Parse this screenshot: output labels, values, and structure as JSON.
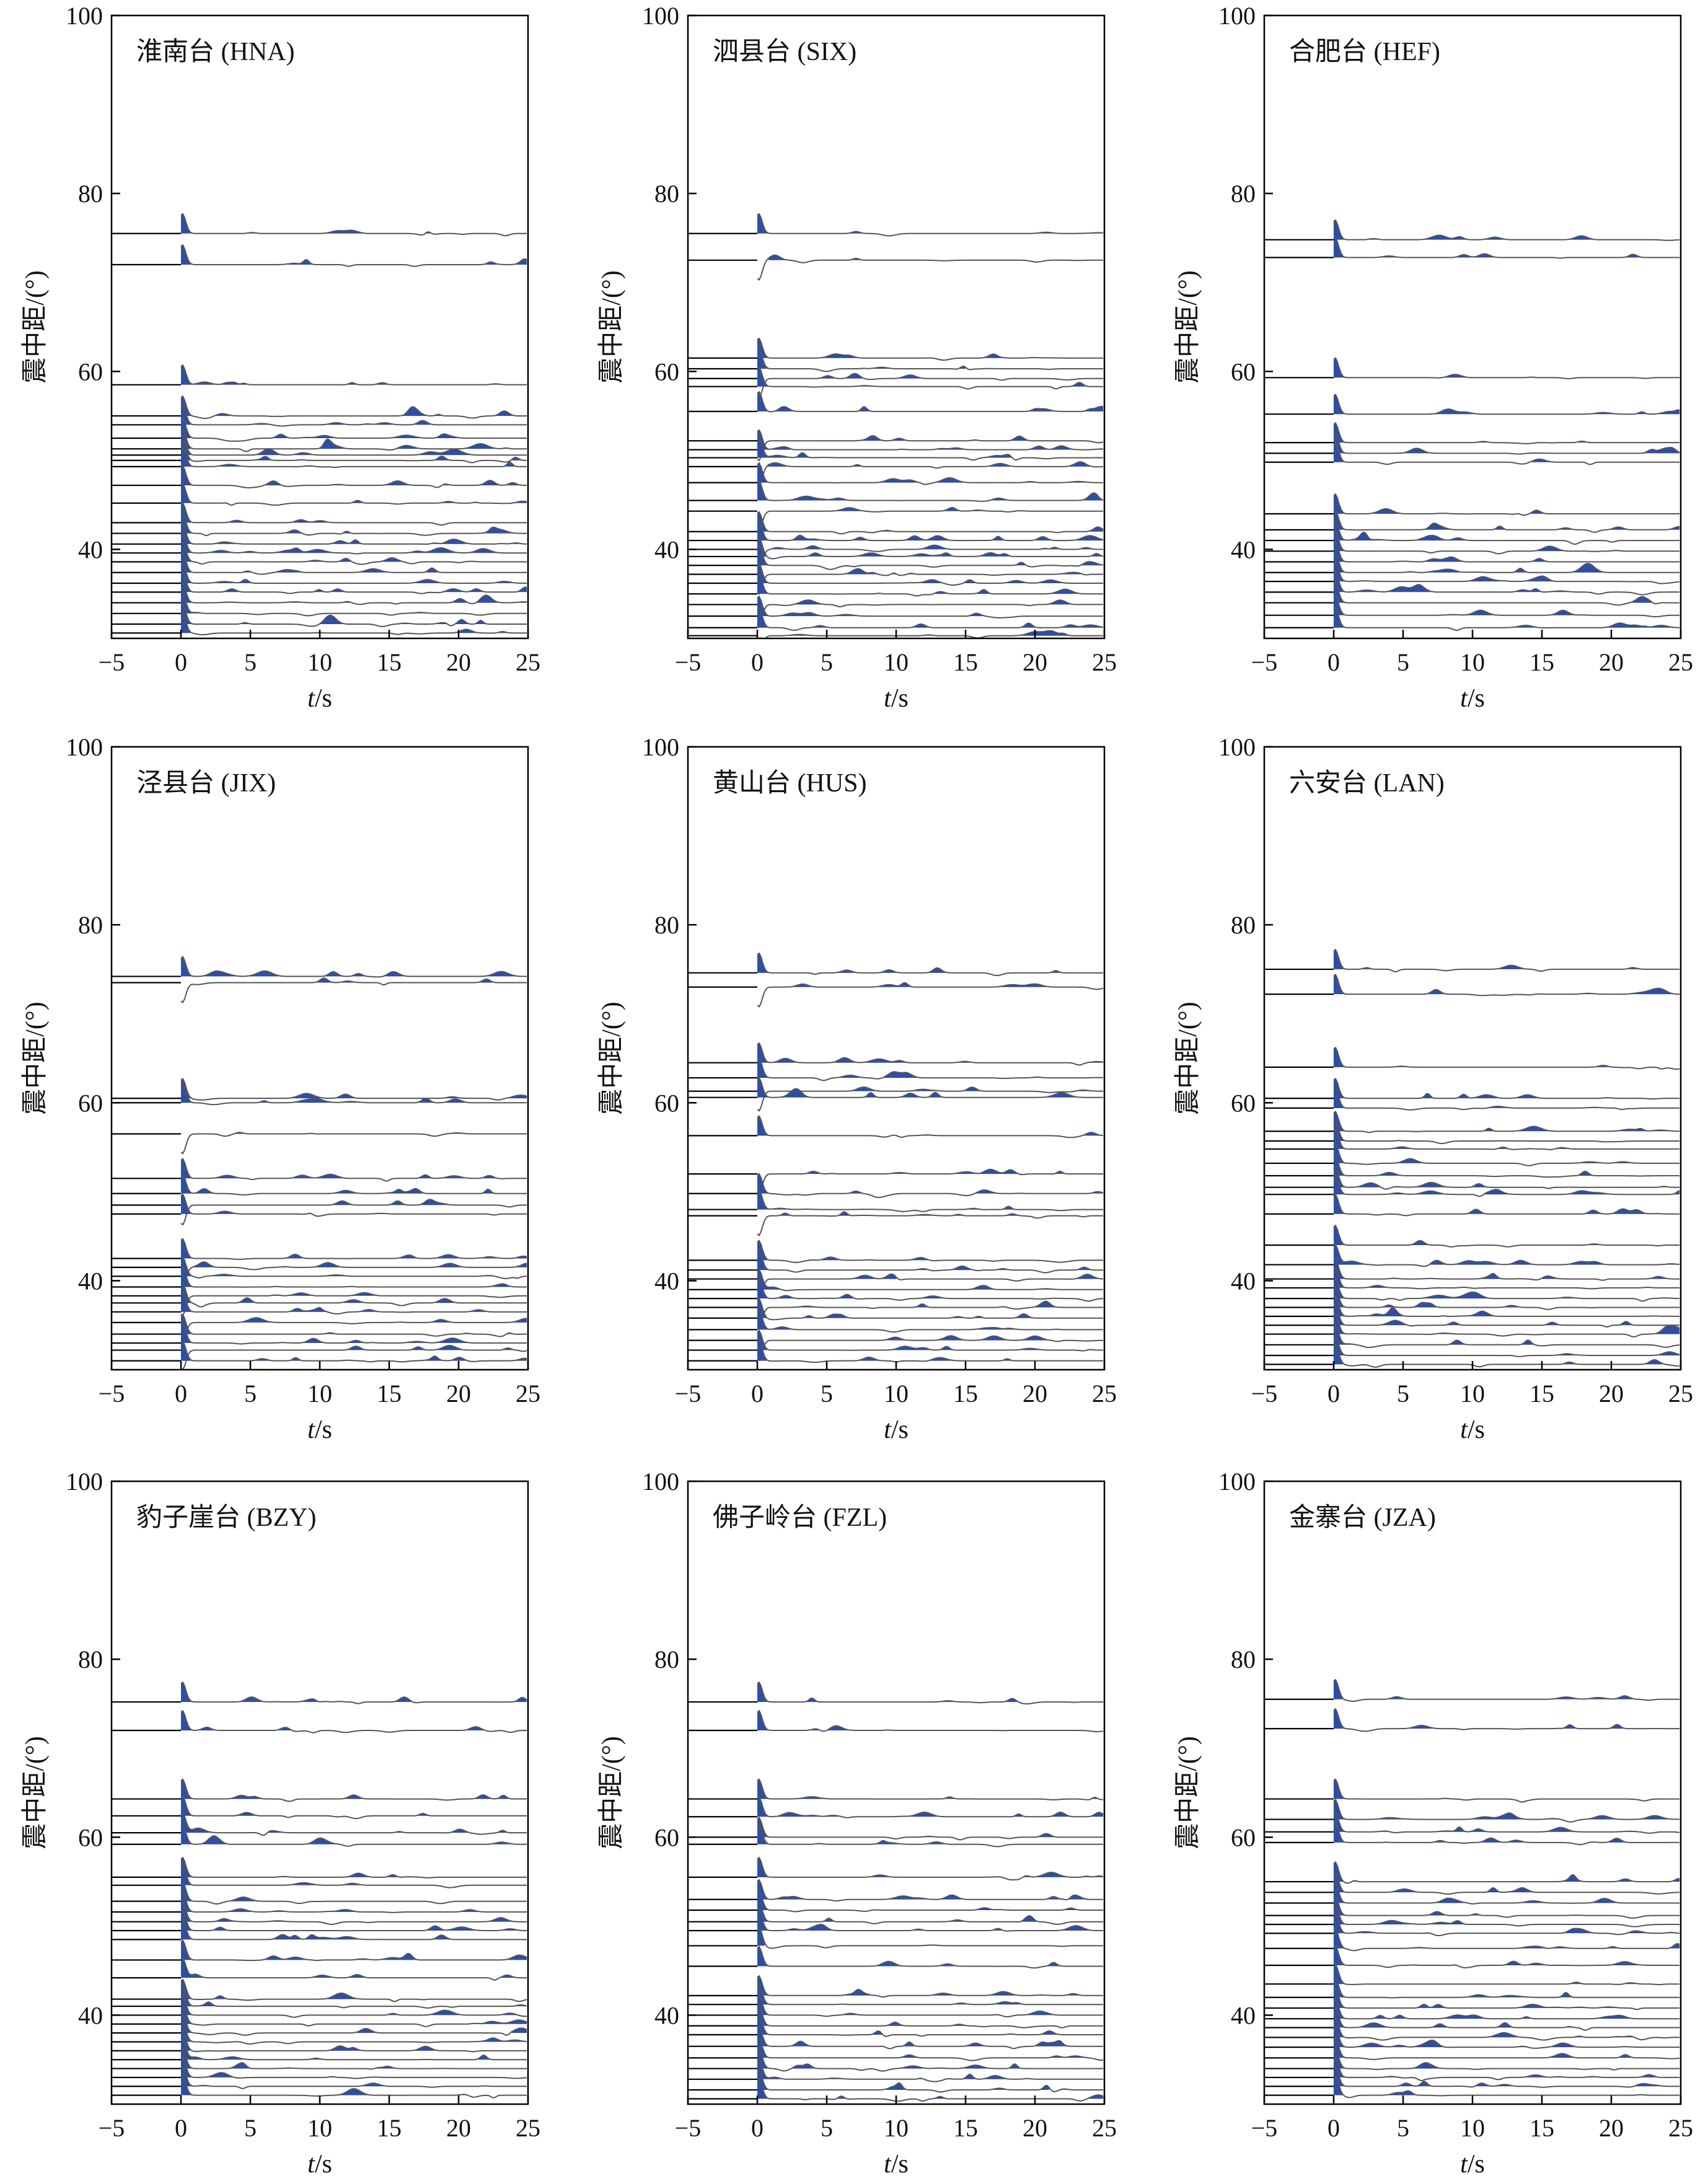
{
  "chart_data": [
    {
      "type": "line",
      "station": "淮南台 (HNA)",
      "title": "",
      "xlabel": "t/s",
      "ylabel": "震中距/(°)",
      "xlim": [
        -5,
        25
      ],
      "ylim": [
        30,
        100
      ],
      "xticks": [
        -5,
        0,
        5,
        10,
        15,
        20,
        25
      ],
      "yticks": [
        40,
        60,
        80,
        100
      ],
      "p_polarity": "positive",
      "traces_distance_deg": [
        75.5,
        72.0,
        58.5,
        55.0,
        54.0,
        52.5,
        51.3,
        50.6,
        50.0,
        49.3,
        47.2,
        45.2,
        43.0,
        41.8,
        40.6,
        39.6,
        38.6,
        37.4,
        36.2,
        35.2,
        34.0,
        32.8,
        31.6,
        30.6
      ],
      "legend": "none",
      "grid": false
    },
    {
      "type": "line",
      "station": "泗县台 (SIX)",
      "title": "",
      "xlabel": "t/s",
      "ylabel": "震中距/(°)",
      "xlim": [
        -5,
        25
      ],
      "ylim": [
        30,
        100
      ],
      "xticks": [
        -5,
        0,
        5,
        10,
        15,
        20,
        25
      ],
      "yticks": [
        40,
        60,
        80,
        100
      ],
      "p_polarity": "mixed",
      "traces_distance_deg": [
        75.5,
        72.5,
        61.5,
        60.3,
        59.2,
        58.3,
        55.5,
        52.2,
        51.2,
        50.3,
        49.3,
        47.5,
        45.5,
        44.3,
        42.0,
        41.0,
        40.0,
        39.2,
        38.2,
        37.2,
        36.2,
        35.0,
        33.8,
        32.5,
        31.2,
        30.3
      ],
      "legend": "none",
      "grid": false
    },
    {
      "type": "line",
      "station": "合肥台 (HEF)",
      "title": "",
      "xlabel": "t/s",
      "ylabel": "震中距/(°)",
      "xlim": [
        -5,
        25
      ],
      "ylim": [
        30,
        100
      ],
      "xticks": [
        -5,
        0,
        5,
        10,
        15,
        20,
        25
      ],
      "yticks": [
        40,
        60,
        80,
        100
      ],
      "p_polarity": "positive",
      "traces_distance_deg": [
        74.8,
        72.8,
        59.3,
        55.2,
        52.0,
        50.8,
        49.8,
        44.0,
        42.2,
        41.0,
        39.8,
        38.6,
        37.4,
        36.4,
        35.2,
        34.0,
        32.6,
        31.2
      ],
      "legend": "none",
      "grid": false
    },
    {
      "type": "line",
      "station": "泾县台 (JIX)",
      "title": "",
      "xlabel": "t/s",
      "ylabel": "震中距/(°)",
      "xlim": [
        -5,
        25
      ],
      "ylim": [
        30,
        100
      ],
      "xticks": [
        -5,
        0,
        5,
        10,
        15,
        20,
        25
      ],
      "yticks": [
        40,
        60,
        80,
        100
      ],
      "p_polarity": "mixed",
      "traces_distance_deg": [
        74.2,
        73.5,
        60.5,
        60.0,
        56.5,
        51.5,
        49.8,
        48.5,
        47.5,
        42.5,
        41.5,
        40.5,
        39.3,
        38.3,
        37.5,
        36.5,
        35.3,
        34.0,
        33.0,
        32.2,
        31.0
      ],
      "legend": "none",
      "grid": false
    },
    {
      "type": "line",
      "station": "黄山台 (HUS)",
      "title": "",
      "xlabel": "t/s",
      "ylabel": "震中距/(°)",
      "xlim": [
        -5,
        25
      ],
      "ylim": [
        30,
        100
      ],
      "xticks": [
        -5,
        0,
        5,
        10,
        15,
        20,
        25
      ],
      "yticks": [
        40,
        60,
        80,
        100
      ],
      "p_polarity": "mixed",
      "traces_distance_deg": [
        74.6,
        73.0,
        64.5,
        62.8,
        61.3,
        60.6,
        56.3,
        52.0,
        49.8,
        48.0,
        47.3,
        42.3,
        41.2,
        40.2,
        39.0,
        38.0,
        37.0,
        35.8,
        34.5,
        33.3,
        32.2,
        31.0
      ],
      "legend": "none",
      "grid": false
    },
    {
      "type": "line",
      "station": "六安台 (LAN)",
      "title": "",
      "xlabel": "t/s",
      "ylabel": "震中距/(°)",
      "xlim": [
        -5,
        25
      ],
      "ylim": [
        30,
        100
      ],
      "xticks": [
        -5,
        0,
        5,
        10,
        15,
        20,
        25
      ],
      "yticks": [
        40,
        60,
        80,
        100
      ],
      "p_polarity": "positive",
      "traces_distance_deg": [
        75.0,
        72.2,
        64.0,
        60.5,
        59.4,
        56.8,
        55.7,
        54.8,
        53.2,
        51.8,
        50.5,
        49.7,
        47.5,
        44.0,
        41.8,
        40.2,
        39.2,
        38.0,
        37.0,
        36.0,
        35.0,
        34.0,
        32.8,
        31.6,
        30.6
      ],
      "legend": "none",
      "grid": false
    },
    {
      "type": "line",
      "station": "豹子崖台 (BZY)",
      "title": "",
      "xlabel": "t/s",
      "ylabel": "震中距/(°)",
      "xlim": [
        -5,
        25
      ],
      "ylim": [
        30,
        100
      ],
      "xticks": [
        -5,
        0,
        5,
        10,
        15,
        20,
        25
      ],
      "yticks": [
        40,
        60,
        80,
        100
      ],
      "p_polarity": "positive",
      "traces_distance_deg": [
        75.2,
        72.0,
        64.3,
        62.4,
        60.5,
        59.2,
        55.5,
        54.6,
        52.8,
        51.6,
        50.5,
        49.5,
        48.5,
        46.2,
        44.2,
        41.8,
        41.0,
        40.0,
        39.0,
        38.0,
        37.0,
        36.0,
        35.0,
        34.0,
        33.0,
        32.0,
        31.0
      ],
      "legend": "none",
      "grid": false
    },
    {
      "type": "line",
      "station": "佛子岭台 (FZL)",
      "title": "",
      "xlabel": "t/s",
      "ylabel": "震中距/(°)",
      "xlim": [
        -5,
        25
      ],
      "ylim": [
        30,
        100
      ],
      "xticks": [
        -5,
        0,
        5,
        10,
        15,
        20,
        25
      ],
      "yticks": [
        40,
        60,
        80,
        100
      ],
      "p_polarity": "positive",
      "traces_distance_deg": [
        75.2,
        72.0,
        64.3,
        62.3,
        60.0,
        59.2,
        55.5,
        53.0,
        51.8,
        50.5,
        49.5,
        47.8,
        45.5,
        42.2,
        41.2,
        40.0,
        38.8,
        37.8,
        36.5,
        35.2,
        34.0,
        32.8,
        31.6,
        30.6
      ],
      "legend": "none",
      "grid": false
    },
    {
      "type": "line",
      "station": "金寨台 (JZA)",
      "title": "",
      "xlabel": "t/s",
      "ylabel": "震中距/(°)",
      "xlim": [
        -5,
        25
      ],
      "ylim": [
        30,
        100
      ],
      "xticks": [
        -5,
        0,
        5,
        10,
        15,
        20,
        25
      ],
      "yticks": [
        40,
        60,
        80,
        100
      ],
      "p_polarity": "positive",
      "traces_distance_deg": [
        75.5,
        72.2,
        64.3,
        62.0,
        60.6,
        59.4,
        55.0,
        53.8,
        52.6,
        51.2,
        50.2,
        49.2,
        47.5,
        45.6,
        43.5,
        42.0,
        40.8,
        39.6,
        38.6,
        37.5,
        36.4,
        35.2,
        34.0,
        33.0,
        32.0,
        31.0
      ],
      "legend": "none",
      "grid": false
    }
  ],
  "colors": {
    "fill": "#2e4ea6",
    "trace": "#555555",
    "axis": "#000000"
  }
}
